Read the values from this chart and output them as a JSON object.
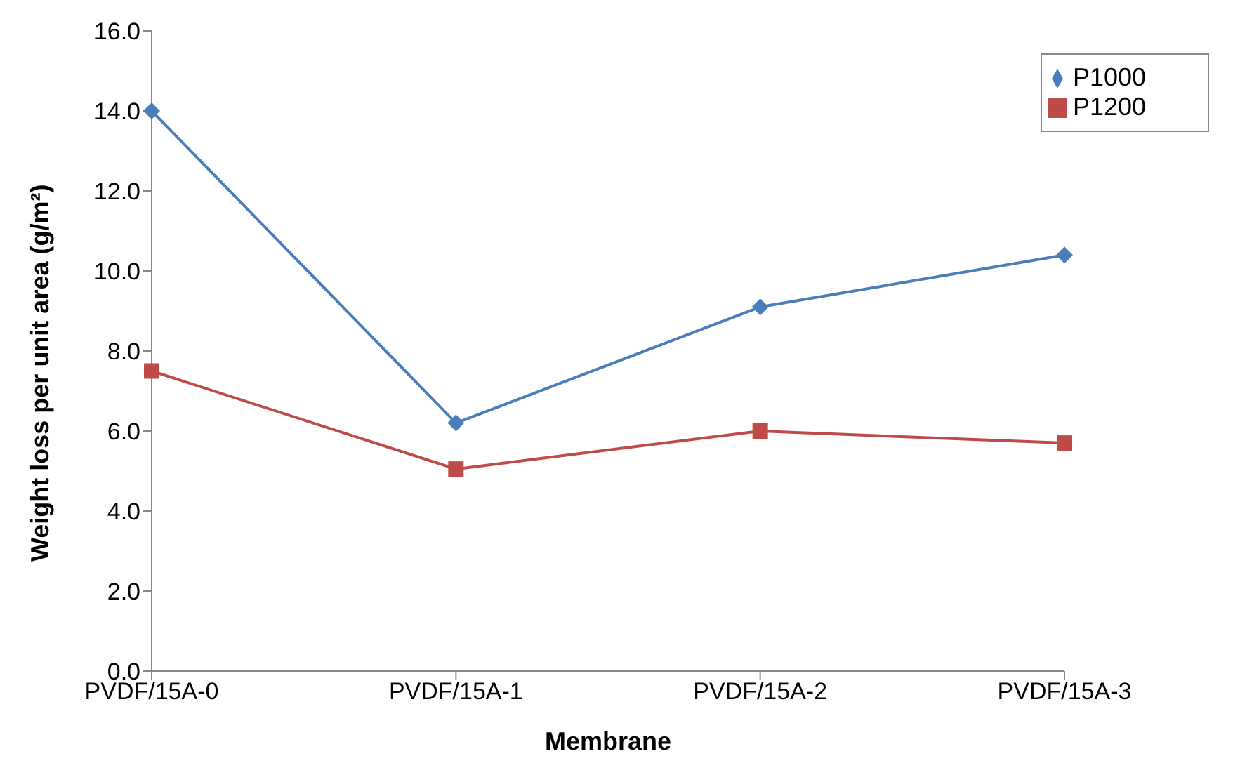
{
  "chart_data": {
    "type": "line",
    "xlabel": "Membrane",
    "ylabel": "Weight loss per unit area (g/m²)",
    "categories": [
      "PVDF/15A-0",
      "PVDF/15A-1",
      "PVDF/15A-2",
      "PVDF/15A-3"
    ],
    "series": [
      {
        "name": "P1000",
        "color": "#4a7ebb",
        "marker": "diamond",
        "values": [
          14.0,
          6.2,
          9.1,
          10.4
        ]
      },
      {
        "name": "P1200",
        "color": "#be4b48",
        "marker": "square",
        "values": [
          7.5,
          5.05,
          6.0,
          5.7
        ]
      }
    ],
    "ylim": [
      0,
      16
    ],
    "yticks": [
      {
        "value": 0,
        "label": "0.0"
      },
      {
        "value": 2,
        "label": "2.0"
      },
      {
        "value": 4,
        "label": "4.0"
      },
      {
        "value": 6,
        "label": "6.0"
      },
      {
        "value": 8,
        "label": "8.0"
      },
      {
        "value": 10,
        "label": "10.0"
      },
      {
        "value": 12,
        "label": "12.0"
      },
      {
        "value": 14,
        "label": "14.0"
      },
      {
        "value": 16,
        "label": "16.0"
      }
    ],
    "grid": false,
    "legend": "top right",
    "line_style": "solid"
  }
}
